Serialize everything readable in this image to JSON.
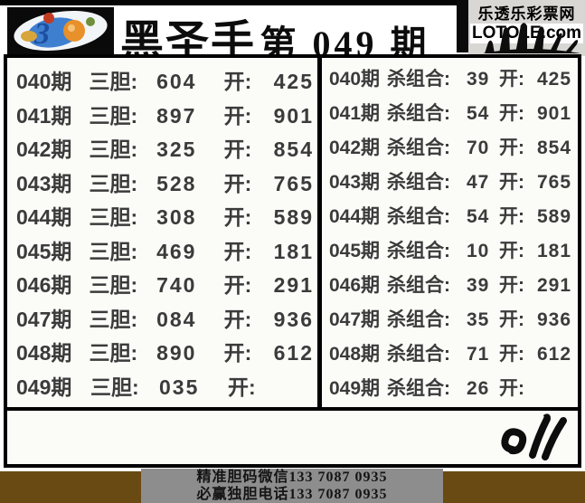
{
  "header": {
    "title": "黑圣手",
    "issue": "第 049 期",
    "site_name": "乐透乐彩票网",
    "site_domain": "LOTOLE.com"
  },
  "icons": {
    "logo": "3d-lottery-ball-logo",
    "hand_top": "black-hand-silhouette",
    "hand_signature": "handwritten-signature-mark"
  },
  "colors": {
    "accent_red": "#e2241c",
    "band_brown": "#6a4a13",
    "contact_gray": "#8d8d8d",
    "table_text": "#3b3b3b"
  },
  "table": {
    "left": {
      "rows": [
        {
          "issue": "040期",
          "pick_label": "三胆:",
          "pick": "604",
          "open_label": "开:",
          "result": "425"
        },
        {
          "issue": "041期",
          "pick_label": "三胆:",
          "pick": "897",
          "open_label": "开:",
          "result": "901"
        },
        {
          "issue": "042期",
          "pick_label": "三胆:",
          "pick": "325",
          "open_label": "开:",
          "result": "854"
        },
        {
          "issue": "043期",
          "pick_label": "三胆:",
          "pick": "528",
          "open_label": "开:",
          "result": "765"
        },
        {
          "issue": "044期",
          "pick_label": "三胆:",
          "pick": "308",
          "open_label": "开:",
          "result": "589"
        },
        {
          "issue": "045期",
          "pick_label": "三胆:",
          "pick": "469",
          "open_label": "开:",
          "result": "181"
        },
        {
          "issue": "046期",
          "pick_label": "三胆:",
          "pick": "740",
          "open_label": "开:",
          "result": "291"
        },
        {
          "issue": "047期",
          "pick_label": "三胆:",
          "pick": "084",
          "open_label": "开:",
          "result": "936"
        },
        {
          "issue": "048期",
          "pick_label": "三胆:",
          "pick": "890",
          "open_label": "开:",
          "result": "612"
        },
        {
          "issue": "049期",
          "pick_label": "三胆:",
          "pick": "035",
          "open_label": "开:",
          "result": ""
        }
      ]
    },
    "right": {
      "rows": [
        {
          "issue": "040期",
          "pick_label": "杀组合:",
          "pick": "39",
          "open_label": "开:",
          "result": "425"
        },
        {
          "issue": "041期",
          "pick_label": "杀组合:",
          "pick": "54",
          "open_label": "开:",
          "result": "901"
        },
        {
          "issue": "042期",
          "pick_label": "杀组合:",
          "pick": "70",
          "open_label": "开:",
          "result": "854"
        },
        {
          "issue": "043期",
          "pick_label": "杀组合:",
          "pick": "47",
          "open_label": "开:",
          "result": "765"
        },
        {
          "issue": "044期",
          "pick_label": "杀组合:",
          "pick": "54",
          "open_label": "开:",
          "result": "589"
        },
        {
          "issue": "045期",
          "pick_label": "杀组合:",
          "pick": "10",
          "open_label": "开:",
          "result": "181"
        },
        {
          "issue": "046期",
          "pick_label": "杀组合:",
          "pick": "39",
          "open_label": "开:",
          "result": "291"
        },
        {
          "issue": "047期",
          "pick_label": "杀组合:",
          "pick": "35",
          "open_label": "开:",
          "result": "936"
        },
        {
          "issue": "048期",
          "pick_label": "杀组合:",
          "pick": "71",
          "open_label": "开:",
          "result": "612"
        },
        {
          "issue": "049期",
          "pick_label": "杀组合:",
          "pick": "26",
          "open_label": "开:",
          "result": ""
        }
      ]
    }
  },
  "footer": {
    "line1": "精准胆码微信133 7087 0935",
    "line2": "必赢独胆电话133 7087 0935"
  }
}
